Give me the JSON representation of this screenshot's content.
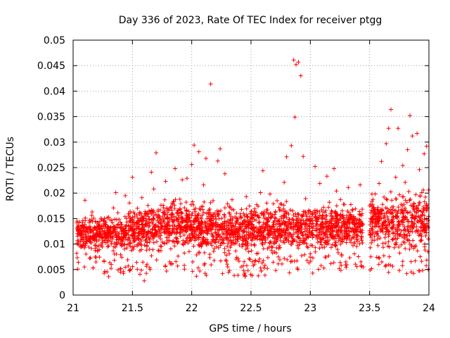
{
  "chart_data": {
    "type": "scatter",
    "title": "Day 336 of 2023, Rate Of TEC Index for receiver ptgg",
    "xlabel": "GPS time / hours",
    "ylabel": "ROTI / TECUs",
    "xlim": [
      21,
      24
    ],
    "ylim": [
      0,
      0.05
    ],
    "grid": true,
    "marker": "+",
    "series_color": "#ff0000",
    "xticks": [
      21,
      21.5,
      22,
      22.5,
      23,
      23.5,
      24
    ],
    "xtick_labels": [
      "21",
      "21.5",
      "22",
      "22.5",
      "23",
      "23.5",
      "24"
    ],
    "yticks": [
      0,
      0.005,
      0.01,
      0.015,
      0.02,
      0.025,
      0.03,
      0.035,
      0.04,
      0.045,
      0.05
    ],
    "ytick_labels": [
      "0",
      "0.005",
      "0.01",
      "0.015",
      "0.02",
      "0.025",
      "0.03",
      "0.035",
      "0.04",
      "0.045",
      "0.05"
    ],
    "points": [
      [
        21.04,
        0.0051
      ],
      [
        21.06,
        0.0098
      ],
      [
        21.08,
        0.0142
      ],
      [
        21.1,
        0.0186
      ],
      [
        21.12,
        0.0125
      ],
      [
        21.14,
        0.0072
      ],
      [
        21.16,
        0.0163
      ],
      [
        21.18,
        0.011
      ],
      [
        21.2,
        0.0135
      ],
      [
        21.22,
        0.0089
      ],
      [
        21.24,
        0.0148
      ],
      [
        21.26,
        0.0067
      ],
      [
        21.28,
        0.0122
      ],
      [
        21.3,
        0.0036
      ],
      [
        21.32,
        0.0105
      ],
      [
        21.34,
        0.0171
      ],
      [
        21.36,
        0.0201
      ],
      [
        21.38,
        0.0139
      ],
      [
        21.4,
        0.0079
      ],
      [
        21.42,
        0.0113
      ],
      [
        21.44,
        0.0195
      ],
      [
        21.46,
        0.0069
      ],
      [
        21.48,
        0.0152
      ],
      [
        21.5,
        0.0231
      ],
      [
        21.52,
        0.0128
      ],
      [
        21.54,
        0.0096
      ],
      [
        21.56,
        0.0159
      ],
      [
        21.58,
        0.0191
      ],
      [
        21.6,
        0.0028
      ],
      [
        21.62,
        0.0112
      ],
      [
        21.64,
        0.0165
      ],
      [
        21.66,
        0.0241
      ],
      [
        21.68,
        0.0208
      ],
      [
        21.7,
        0.0279
      ],
      [
        21.72,
        0.0133
      ],
      [
        21.74,
        0.0087
      ],
      [
        21.76,
        0.0176
      ],
      [
        21.78,
        0.0223
      ],
      [
        21.8,
        0.0119
      ],
      [
        21.82,
        0.0061
      ],
      [
        21.84,
        0.0145
      ],
      [
        21.86,
        0.0248
      ],
      [
        21.88,
        0.0102
      ],
      [
        21.9,
        0.0188
      ],
      [
        21.92,
        0.0226
      ],
      [
        21.94,
        0.0134
      ],
      [
        21.96,
        0.0229
      ],
      [
        21.98,
        0.0152
      ],
      [
        22.0,
        0.0256
      ],
      [
        22.02,
        0.0294
      ],
      [
        22.04,
        0.0037
      ],
      [
        22.06,
        0.0281
      ],
      [
        22.08,
        0.0173
      ],
      [
        22.1,
        0.0216
      ],
      [
        22.12,
        0.0268
      ],
      [
        22.14,
        0.0129
      ],
      [
        22.16,
        0.0414
      ],
      [
        22.18,
        0.0185
      ],
      [
        22.2,
        0.0142
      ],
      [
        22.22,
        0.0263
      ],
      [
        22.24,
        0.0287
      ],
      [
        22.26,
        0.0042
      ],
      [
        22.28,
        0.0238
      ],
      [
        22.3,
        0.0096
      ],
      [
        22.32,
        0.0159
      ],
      [
        22.34,
        0.0187
      ],
      [
        22.36,
        0.0121
      ],
      [
        22.38,
        0.0074
      ],
      [
        22.4,
        0.0139
      ],
      [
        22.42,
        0.0168
      ],
      [
        22.44,
        0.0108
      ],
      [
        22.46,
        0.0193
      ],
      [
        22.48,
        0.0085
      ],
      [
        22.5,
        0.0152
      ],
      [
        22.52,
        0.0118
      ],
      [
        22.54,
        0.0067
      ],
      [
        22.56,
        0.0174
      ],
      [
        22.58,
        0.0201
      ],
      [
        22.6,
        0.0244
      ],
      [
        22.62,
        0.0131
      ],
      [
        22.64,
        0.0091
      ],
      [
        22.66,
        0.0198
      ],
      [
        22.68,
        0.0157
      ],
      [
        22.7,
        0.0106
      ],
      [
        22.72,
        0.0185
      ],
      [
        22.74,
        0.0128
      ],
      [
        22.76,
        0.0166
      ],
      [
        22.78,
        0.0221
      ],
      [
        22.8,
        0.0271
      ],
      [
        22.82,
        0.0114
      ],
      [
        22.84,
        0.0293
      ],
      [
        22.86,
        0.0461
      ],
      [
        22.87,
        0.0349
      ],
      [
        22.88,
        0.0452
      ],
      [
        22.9,
        0.0457
      ],
      [
        22.92,
        0.043
      ],
      [
        22.94,
        0.0272
      ],
      [
        22.96,
        0.0189
      ],
      [
        22.98,
        0.0137
      ],
      [
        23.0,
        0.0081
      ],
      [
        23.02,
        0.0043
      ],
      [
        23.04,
        0.0252
      ],
      [
        23.06,
        0.0163
      ],
      [
        23.08,
        0.0219
      ],
      [
        23.1,
        0.0131
      ],
      [
        23.12,
        0.0094
      ],
      [
        23.14,
        0.0233
      ],
      [
        23.16,
        0.0182
      ],
      [
        23.18,
        0.0116
      ],
      [
        23.2,
        0.0248
      ],
      [
        23.22,
        0.0204
      ],
      [
        23.24,
        0.0147
      ],
      [
        23.26,
        0.0058
      ],
      [
        23.28,
        0.0178
      ],
      [
        23.3,
        0.0126
      ],
      [
        23.32,
        0.0211
      ],
      [
        23.34,
        0.0152
      ],
      [
        23.36,
        0.0097
      ],
      [
        23.38,
        0.0169
      ],
      [
        23.4,
        0.0133
      ],
      [
        23.42,
        0.0216
      ],
      [
        23.52,
        0.0198
      ],
      [
        23.54,
        0.0161
      ],
      [
        23.56,
        0.0074
      ],
      [
        23.58,
        0.0219
      ],
      [
        23.6,
        0.0262
      ],
      [
        23.62,
        0.0141
      ],
      [
        23.64,
        0.0297
      ],
      [
        23.66,
        0.0327
      ],
      [
        23.68,
        0.0364
      ],
      [
        23.7,
        0.0173
      ],
      [
        23.72,
        0.0231
      ],
      [
        23.74,
        0.0327
      ],
      [
        23.76,
        0.0119
      ],
      [
        23.78,
        0.0254
      ],
      [
        23.8,
        0.0221
      ],
      [
        23.82,
        0.0285
      ],
      [
        23.84,
        0.0352
      ],
      [
        23.86,
        0.0312
      ],
      [
        23.88,
        0.0151
      ],
      [
        23.9,
        0.0317
      ],
      [
        23.92,
        0.0246
      ],
      [
        23.94,
        0.0201
      ],
      [
        23.96,
        0.0277
      ],
      [
        23.98,
        0.0292
      ]
    ],
    "band_segments": [
      {
        "x": [
          21.03,
          21.45
        ],
        "y_lo": [
          0.0085,
          0.008
        ],
        "y_hi": [
          0.015,
          0.0155
        ],
        "n": 380
      },
      {
        "x": [
          21.45,
          21.98
        ],
        "y_lo": [
          0.0075,
          0.0085
        ],
        "y_hi": [
          0.0165,
          0.0185
        ],
        "n": 520
      },
      {
        "x": [
          21.98,
          22.5
        ],
        "y_lo": [
          0.008,
          0.0075
        ],
        "y_hi": [
          0.018,
          0.0165
        ],
        "n": 520
      },
      {
        "x": [
          22.5,
          23.0
        ],
        "y_lo": [
          0.0075,
          0.008
        ],
        "y_hi": [
          0.017,
          0.0175
        ],
        "n": 480
      },
      {
        "x": [
          23.0,
          23.45
        ],
        "y_lo": [
          0.008,
          0.009
        ],
        "y_hi": [
          0.0175,
          0.017
        ],
        "n": 430
      },
      {
        "x": [
          23.5,
          24.0
        ],
        "y_lo": [
          0.0085,
          0.008
        ],
        "y_hi": [
          0.0185,
          0.02
        ],
        "n": 460
      }
    ]
  }
}
